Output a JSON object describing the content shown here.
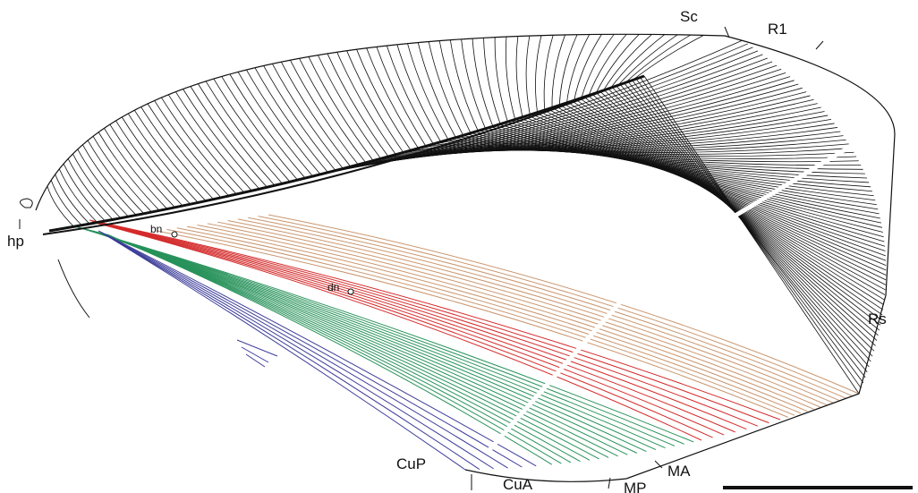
{
  "labels": {
    "sc": "Sc",
    "r1": "R1",
    "hp": "hp",
    "bn": "bn",
    "dn": "dn",
    "rs": "Rs",
    "cup": "CuP",
    "cua": "CuA",
    "mp": "MP",
    "ma": "MA"
  }
}
